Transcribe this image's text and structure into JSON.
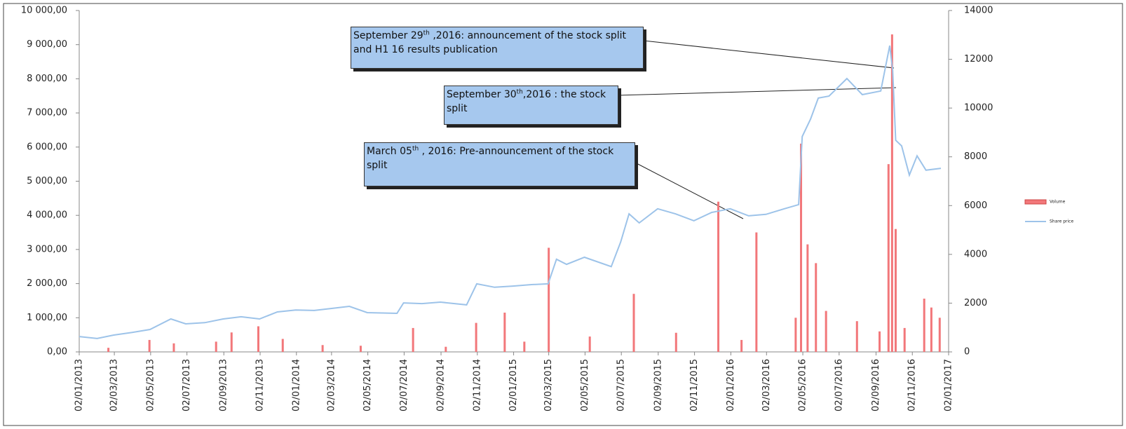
{
  "chart_data": {
    "type": "combo",
    "xlim": [
      "2013-01-02",
      "2017-01-02"
    ],
    "xticks": [
      {
        "value": "2013-01-02",
        "label": "02/01/2013"
      },
      {
        "value": "2013-03-02",
        "label": "02/03/2013"
      },
      {
        "value": "2013-05-02",
        "label": "02/05/2013"
      },
      {
        "value": "2013-07-02",
        "label": "02/07/2013"
      },
      {
        "value": "2013-09-02",
        "label": "02/09/2013"
      },
      {
        "value": "2013-11-02",
        "label": "02/11/2013"
      },
      {
        "value": "2014-01-02",
        "label": "02/01/2014"
      },
      {
        "value": "2014-03-02",
        "label": "02/03/2014"
      },
      {
        "value": "2014-05-02",
        "label": "02/05/2014"
      },
      {
        "value": "2014-07-02",
        "label": "02/07/2014"
      },
      {
        "value": "2014-09-02",
        "label": "02/09/2014"
      },
      {
        "value": "2014-11-02",
        "label": "02/11/2014"
      },
      {
        "value": "2015-01-02",
        "label": "02/01/2015"
      },
      {
        "value": "2015-03-02",
        "label": "02/03/2015"
      },
      {
        "value": "2015-05-02",
        "label": "02/05/2015"
      },
      {
        "value": "2015-07-02",
        "label": "02/07/2015"
      },
      {
        "value": "2015-09-02",
        "label": "02/09/2015"
      },
      {
        "value": "2015-11-02",
        "label": "02/11/2015"
      },
      {
        "value": "2016-01-02",
        "label": "02/01/2016"
      },
      {
        "value": "2016-03-02",
        "label": "02/03/2016"
      },
      {
        "value": "2016-05-02",
        "label": "02/05/2016"
      },
      {
        "value": "2016-07-02",
        "label": "02/07/2016"
      },
      {
        "value": "2016-09-02",
        "label": "02/09/2016"
      },
      {
        "value": "2016-11-02",
        "label": "02/11/2016"
      },
      {
        "value": "2017-01-02",
        "label": "02/01/2017"
      }
    ],
    "ylim": [
      0,
      10000
    ],
    "yticks": [
      {
        "value": 0,
        "label": "0,00"
      },
      {
        "value": 1000,
        "label": "1 000,00"
      },
      {
        "value": 2000,
        "label": "2 000,00"
      },
      {
        "value": 3000,
        "label": "3 000,00"
      },
      {
        "value": 4000,
        "label": "4 000,00"
      },
      {
        "value": 5000,
        "label": "5 000,00"
      },
      {
        "value": 6000,
        "label": "6 000,00"
      },
      {
        "value": 7000,
        "label": "7 000,00"
      },
      {
        "value": 8000,
        "label": "8 000,00"
      },
      {
        "value": 9000,
        "label": "9 000,00"
      },
      {
        "value": 10000,
        "label": "10 000,00"
      }
    ],
    "y2lim": [
      0,
      14000
    ],
    "y2ticks": [
      0,
      2000,
      4000,
      6000,
      8000,
      10000,
      12000,
      14000
    ],
    "series": [
      {
        "name": "Volume",
        "type": "bar",
        "axis": "y",
        "color": "#f2777a",
        "x": [
          "2013-02-20",
          "2013-04-30",
          "2013-06-10",
          "2013-08-20",
          "2013-09-15",
          "2013-10-30",
          "2013-12-10",
          "2014-02-15",
          "2014-04-20",
          "2014-07-17",
          "2014-09-10",
          "2014-10-31",
          "2014-12-18",
          "2015-01-20",
          "2015-03-02",
          "2015-05-10",
          "2015-07-23",
          "2015-10-02",
          "2015-12-12",
          "2016-01-20",
          "2016-02-14",
          "2016-04-20",
          "2016-04-29",
          "2016-05-10",
          "2016-05-24",
          "2016-06-10",
          "2016-08-01",
          "2016-09-08",
          "2016-09-23",
          "2016-09-29",
          "2016-10-05",
          "2016-10-20",
          "2016-11-22",
          "2016-12-04",
          "2016-12-18"
        ],
        "values": [
          120,
          350,
          250,
          300,
          570,
          750,
          380,
          200,
          180,
          700,
          150,
          850,
          1150,
          300,
          3050,
          450,
          1700,
          560,
          4400,
          350,
          3500,
          1000,
          6100,
          3150,
          2600,
          1200,
          900,
          600,
          5500,
          9300,
          3600,
          700,
          1560,
          1300,
          1000
        ]
      },
      {
        "name": "Share price",
        "type": "line",
        "axis": "y2",
        "color": "#9dc3e9",
        "x": [
          "2013-01-02",
          "2013-02-01",
          "2013-03-01",
          "2013-04-01",
          "2013-05-01",
          "2013-06-05",
          "2013-06-30",
          "2013-08-01",
          "2013-09-01",
          "2013-10-01",
          "2013-11-01",
          "2013-12-01",
          "2014-01-01",
          "2014-02-01",
          "2014-03-01",
          "2014-04-01",
          "2014-05-01",
          "2014-06-20",
          "2014-07-01",
          "2014-08-01",
          "2014-09-01",
          "2014-10-15",
          "2014-11-01",
          "2014-12-01",
          "2015-01-01",
          "2015-02-01",
          "2015-03-01",
          "2015-03-15",
          "2015-04-01",
          "2015-05-01",
          "2015-06-15",
          "2015-07-01",
          "2015-07-15",
          "2015-08-01",
          "2015-09-01",
          "2015-10-01",
          "2015-11-01",
          "2015-12-01",
          "2016-01-01",
          "2016-02-01",
          "2016-03-01",
          "2016-04-01",
          "2016-04-25",
          "2016-05-01",
          "2016-05-15",
          "2016-05-28",
          "2016-06-15",
          "2016-07-15",
          "2016-08-10",
          "2016-09-10",
          "2016-09-25",
          "2016-09-30",
          "2016-10-05",
          "2016-10-15",
          "2016-10-28",
          "2016-11-10",
          "2016-11-25",
          "2016-12-20"
        ],
        "values": [
          630,
          550,
          690,
          800,
          920,
          1350,
          1150,
          1200,
          1350,
          1440,
          1350,
          1640,
          1720,
          1700,
          1780,
          1870,
          1610,
          1580,
          2010,
          1980,
          2040,
          1930,
          2790,
          2650,
          2700,
          2760,
          2790,
          3800,
          3590,
          3880,
          3500,
          4510,
          5660,
          5290,
          5870,
          5660,
          5380,
          5720,
          5870,
          5580,
          5640,
          5870,
          6040,
          8830,
          9550,
          10410,
          10490,
          11210,
          10550,
          10700,
          12560,
          11560,
          8680,
          8450,
          7250,
          8040,
          7450,
          7530
        ]
      }
    ],
    "annotations": [
      {
        "text": [
          "September 29",
          "th",
          " ,2016: announcement of the stock split and H1 16 results publication"
        ]
      },
      {
        "text": [
          "September 30",
          "th",
          ",2016 : the stock split"
        ]
      },
      {
        "text": [
          "March 05",
          "th",
          " , 2016: Pre-announcement of the stock split"
        ]
      }
    ]
  }
}
